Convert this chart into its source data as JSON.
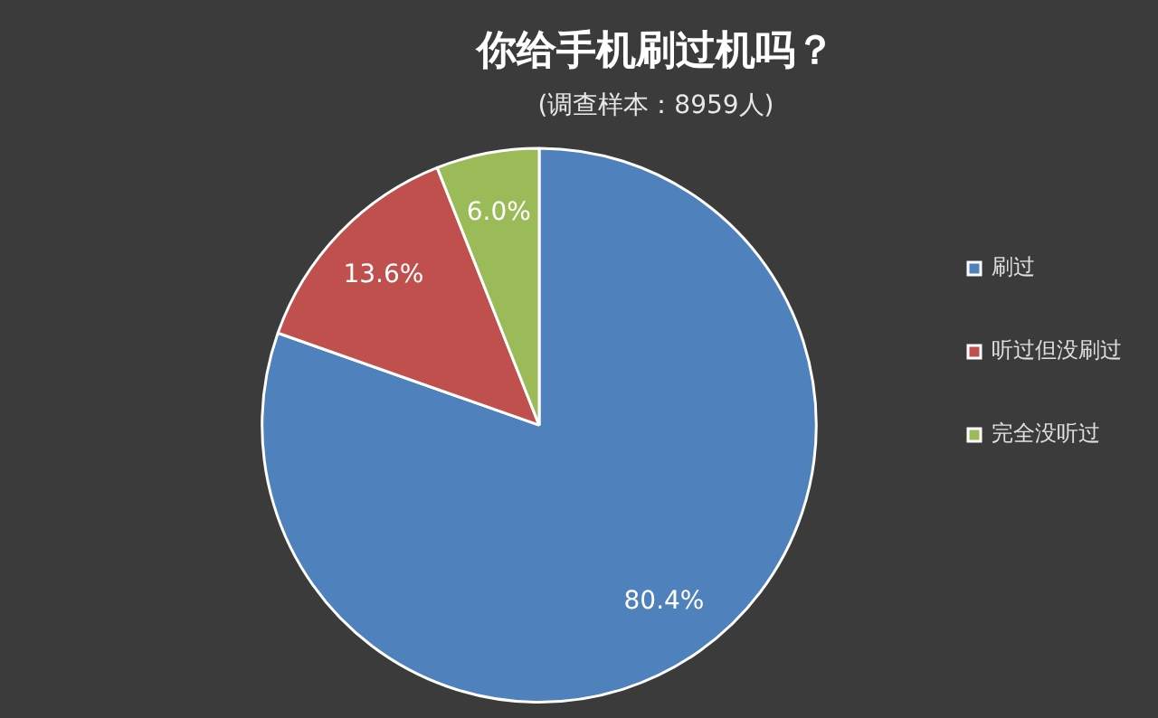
{
  "chart_data": {
    "type": "pie",
    "title": "你给手机刷过机吗？",
    "subtitle": "(调查样本：8959人)",
    "categories": [
      "刷过",
      "听过但没刷过",
      "完全没听过"
    ],
    "values": [
      80.4,
      13.6,
      6.0
    ],
    "colors": [
      "#4f81bd",
      "#c0504d",
      "#9bbb59"
    ],
    "value_labels": [
      "80.4%",
      "13.6%",
      "6.0%"
    ],
    "legend": "right"
  }
}
